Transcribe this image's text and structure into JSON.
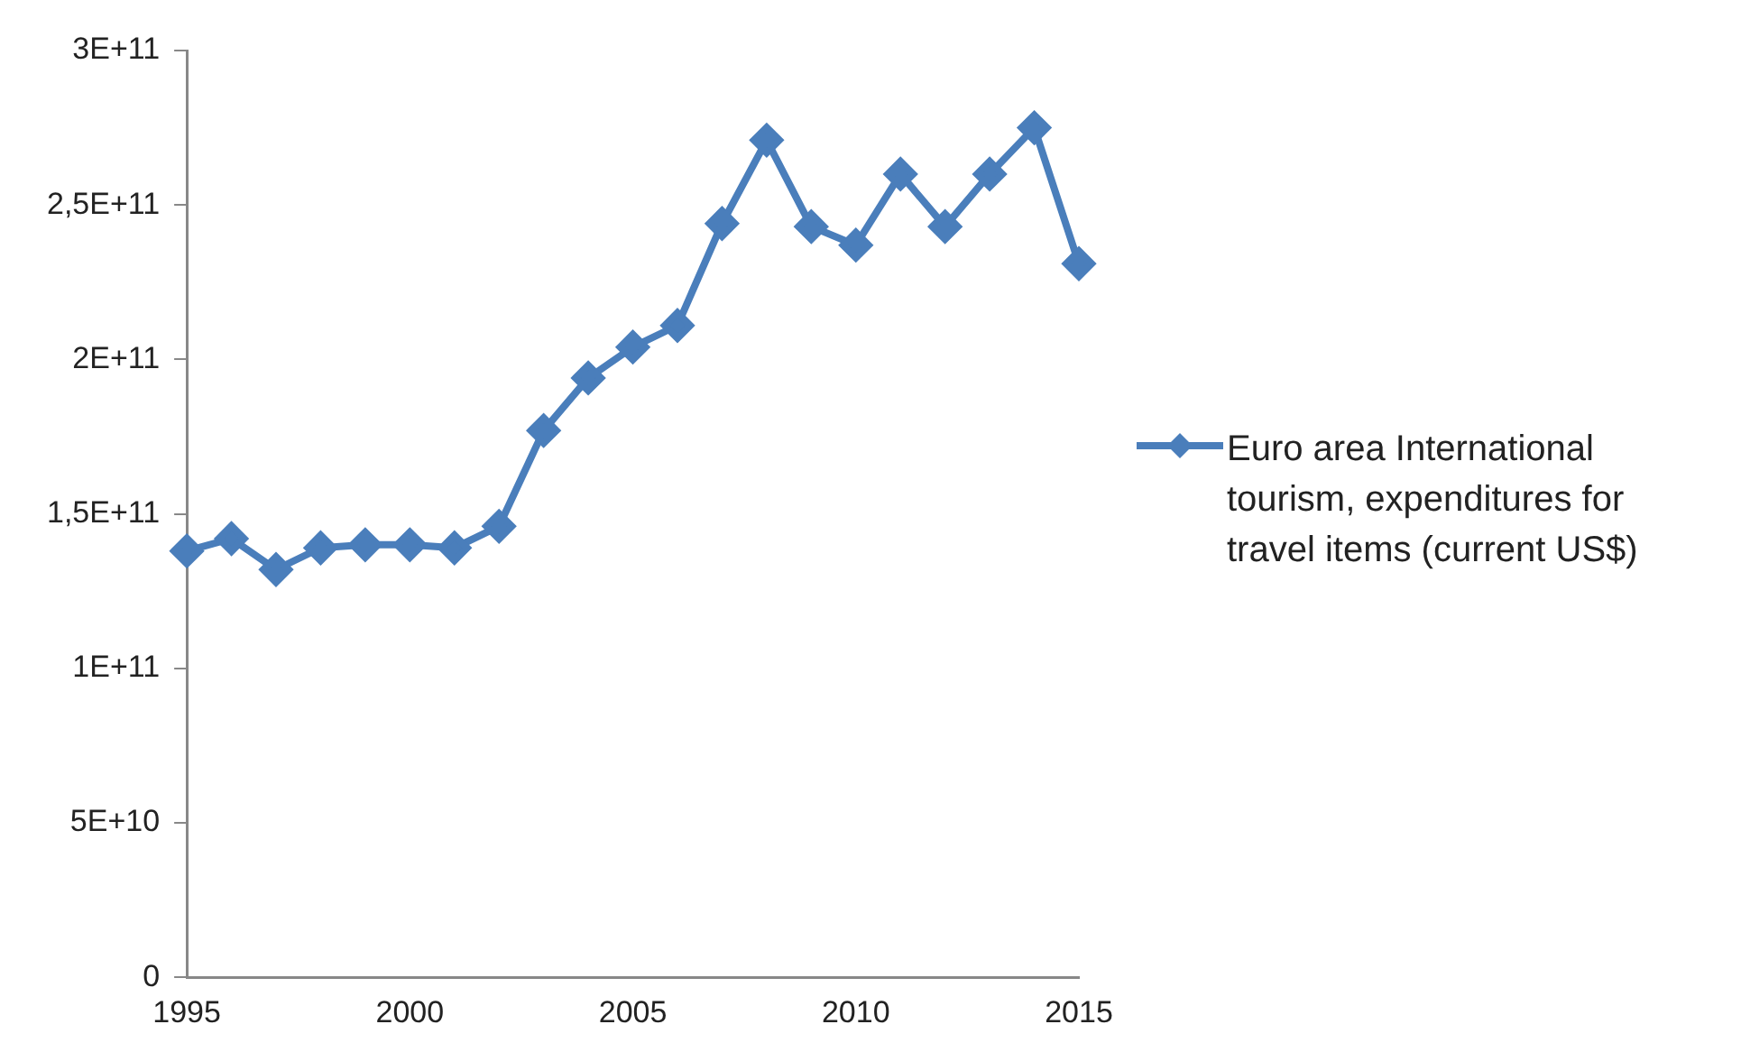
{
  "chart_data": {
    "type": "line",
    "x": [
      1995,
      1996,
      1997,
      1998,
      1999,
      2000,
      2001,
      2002,
      2003,
      2004,
      2005,
      2006,
      2007,
      2008,
      2009,
      2010,
      2011,
      2012,
      2013,
      2014,
      2015
    ],
    "series": [
      {
        "name": "Euro area International tourism, expenditures for travel items (current US$)",
        "color": "#4a7ebb",
        "values": [
          138000000000.0,
          142000000000.0,
          132000000000.0,
          139000000000.0,
          140000000000.0,
          140000000000.0,
          139000000000.0,
          146000000000.0,
          177000000000.0,
          194000000000.0,
          204000000000.0,
          211000000000.0,
          244000000000.0,
          271000000000.0,
          243000000000.0,
          237000000000.0,
          260000000000.0,
          243000000000.0,
          260000000000.0,
          275000000000.0,
          231000000000.0
        ]
      }
    ],
    "xlim": [
      1995,
      2015
    ],
    "xticks": [
      1995,
      2000,
      2005,
      2010,
      2015
    ],
    "ylim": [
      0,
      300000000000.0
    ],
    "yticks": [
      0,
      {
        "value": 50000000000.0,
        "label": "5E+10"
      },
      {
        "value": 100000000000.0,
        "label": "1E+11"
      },
      {
        "value": 150000000000.0,
        "label": "1,5E+11"
      },
      {
        "value": 200000000000.0,
        "label": "2E+11"
      },
      {
        "value": 250000000000.0,
        "label": "2,5E+11"
      },
      {
        "value": 300000000000.0,
        "label": "3E+11"
      }
    ],
    "grid": false,
    "legend": "right",
    "marker": "diamond",
    "line_style": "solid"
  }
}
